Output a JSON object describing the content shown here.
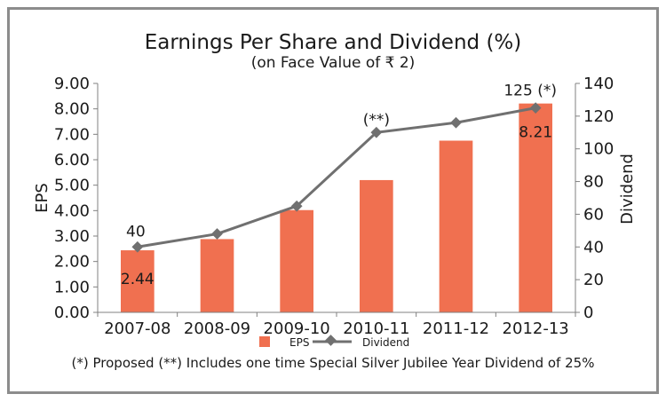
{
  "chart_data": {
    "type": "bar",
    "title": "Earnings Per Share and Dividend (%)",
    "subtitle": "(on Face Value of ₹ 2)",
    "categories": [
      "2007-08",
      "2008-09",
      "2009-10",
      "2010-11",
      "2011-12",
      "2012-13"
    ],
    "series": [
      {
        "name": "EPS",
        "type": "bar",
        "axis": "left",
        "color": "#f07050",
        "values": [
          2.44,
          2.88,
          4.02,
          5.2,
          6.75,
          8.21
        ]
      },
      {
        "name": "Dividend",
        "type": "line",
        "axis": "right",
        "color": "#707070",
        "values": [
          40,
          48,
          65,
          110,
          116,
          125
        ]
      }
    ],
    "ylabel": "EPS",
    "ylim": [
      0,
      9
    ],
    "yticks": [
      "0.00",
      "1.00",
      "2.00",
      "3.00",
      "4.00",
      "5.00",
      "6.00",
      "7.00",
      "8.00",
      "9.00"
    ],
    "y2label": "Dividend",
    "y2lim": [
      0,
      140
    ],
    "y2ticks": [
      "0",
      "20",
      "40",
      "60",
      "80",
      "100",
      "120",
      "140"
    ],
    "annotations": {
      "eps_first": "2.44",
      "eps_last": "8.21",
      "div_first": "40",
      "div_2010": "(**)",
      "div_last": "125 (*)"
    },
    "legend": {
      "items": [
        "EPS",
        "Dividend"
      ],
      "position": "bottom"
    },
    "footnote": "(*) Proposed  (**) Includes one time Special Silver Jubilee Year Dividend of 25%"
  }
}
